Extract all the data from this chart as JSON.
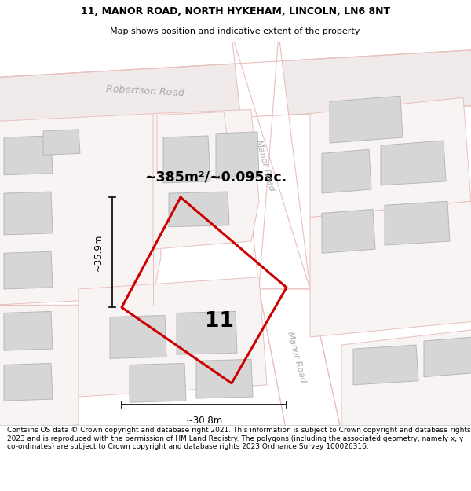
{
  "title_line1": "11, MANOR ROAD, NORTH HYKEHAM, LINCOLN, LN6 8NT",
  "title_line2": "Map shows position and indicative extent of the property.",
  "footer_text": "Contains OS data © Crown copyright and database right 2021. This information is subject to Crown copyright and database rights 2023 and is reproduced with the permission of HM Land Registry. The polygons (including the associated geometry, namely x, y co-ordinates) are subject to Crown copyright and database rights 2023 Ordnance Survey 100026316.",
  "map_bg": "#f7f3f3",
  "road_outline_color": "#e8c0be",
  "road_fill_color": "#f5eeee",
  "building_fill": "#d6d6d6",
  "building_edge": "#b8b8b8",
  "plot_color": "#cc0000",
  "plot_linewidth": 2.2,
  "area_label": "~385m²/~0.095ac.",
  "dim_width_label": "~30.8m",
  "dim_height_label": "~35.9m",
  "road_label_color": "#aaaaaa",
  "title_fontsize": 9,
  "subtitle_fontsize": 8,
  "footer_fontsize": 6.5
}
